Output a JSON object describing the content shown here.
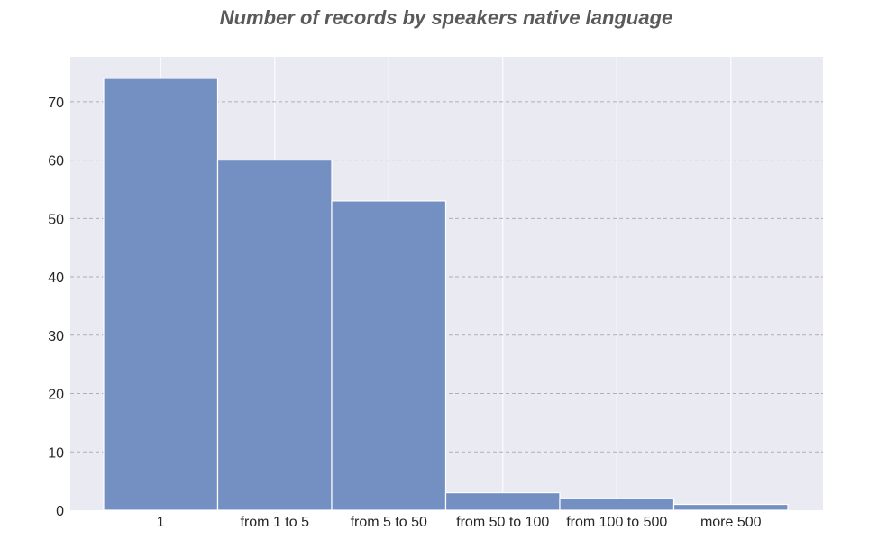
{
  "chart_data": {
    "type": "bar",
    "title": "Number of records by speakers native language",
    "xlabel": "",
    "ylabel": "",
    "categories": [
      "1",
      "from 1 to 5",
      "from 5 to 50",
      "from 50 to 100",
      "from 100 to 500",
      "more 500"
    ],
    "values": [
      74,
      60,
      53,
      3,
      2,
      1
    ],
    "ylim": [
      0,
      77.7
    ],
    "yticks": [
      0,
      10,
      20,
      30,
      40,
      50,
      60,
      70
    ],
    "grid": true,
    "legend": "none",
    "colors": {
      "bar_fill": "#7490c2",
      "bar_edge": "#ffffff",
      "plot_background": "#eaeaf2",
      "horizontal_grid": "#b0b0b0",
      "vertical_grid": "#ffffff",
      "title": "#5a5a5a",
      "tick_text": "#262626"
    }
  }
}
